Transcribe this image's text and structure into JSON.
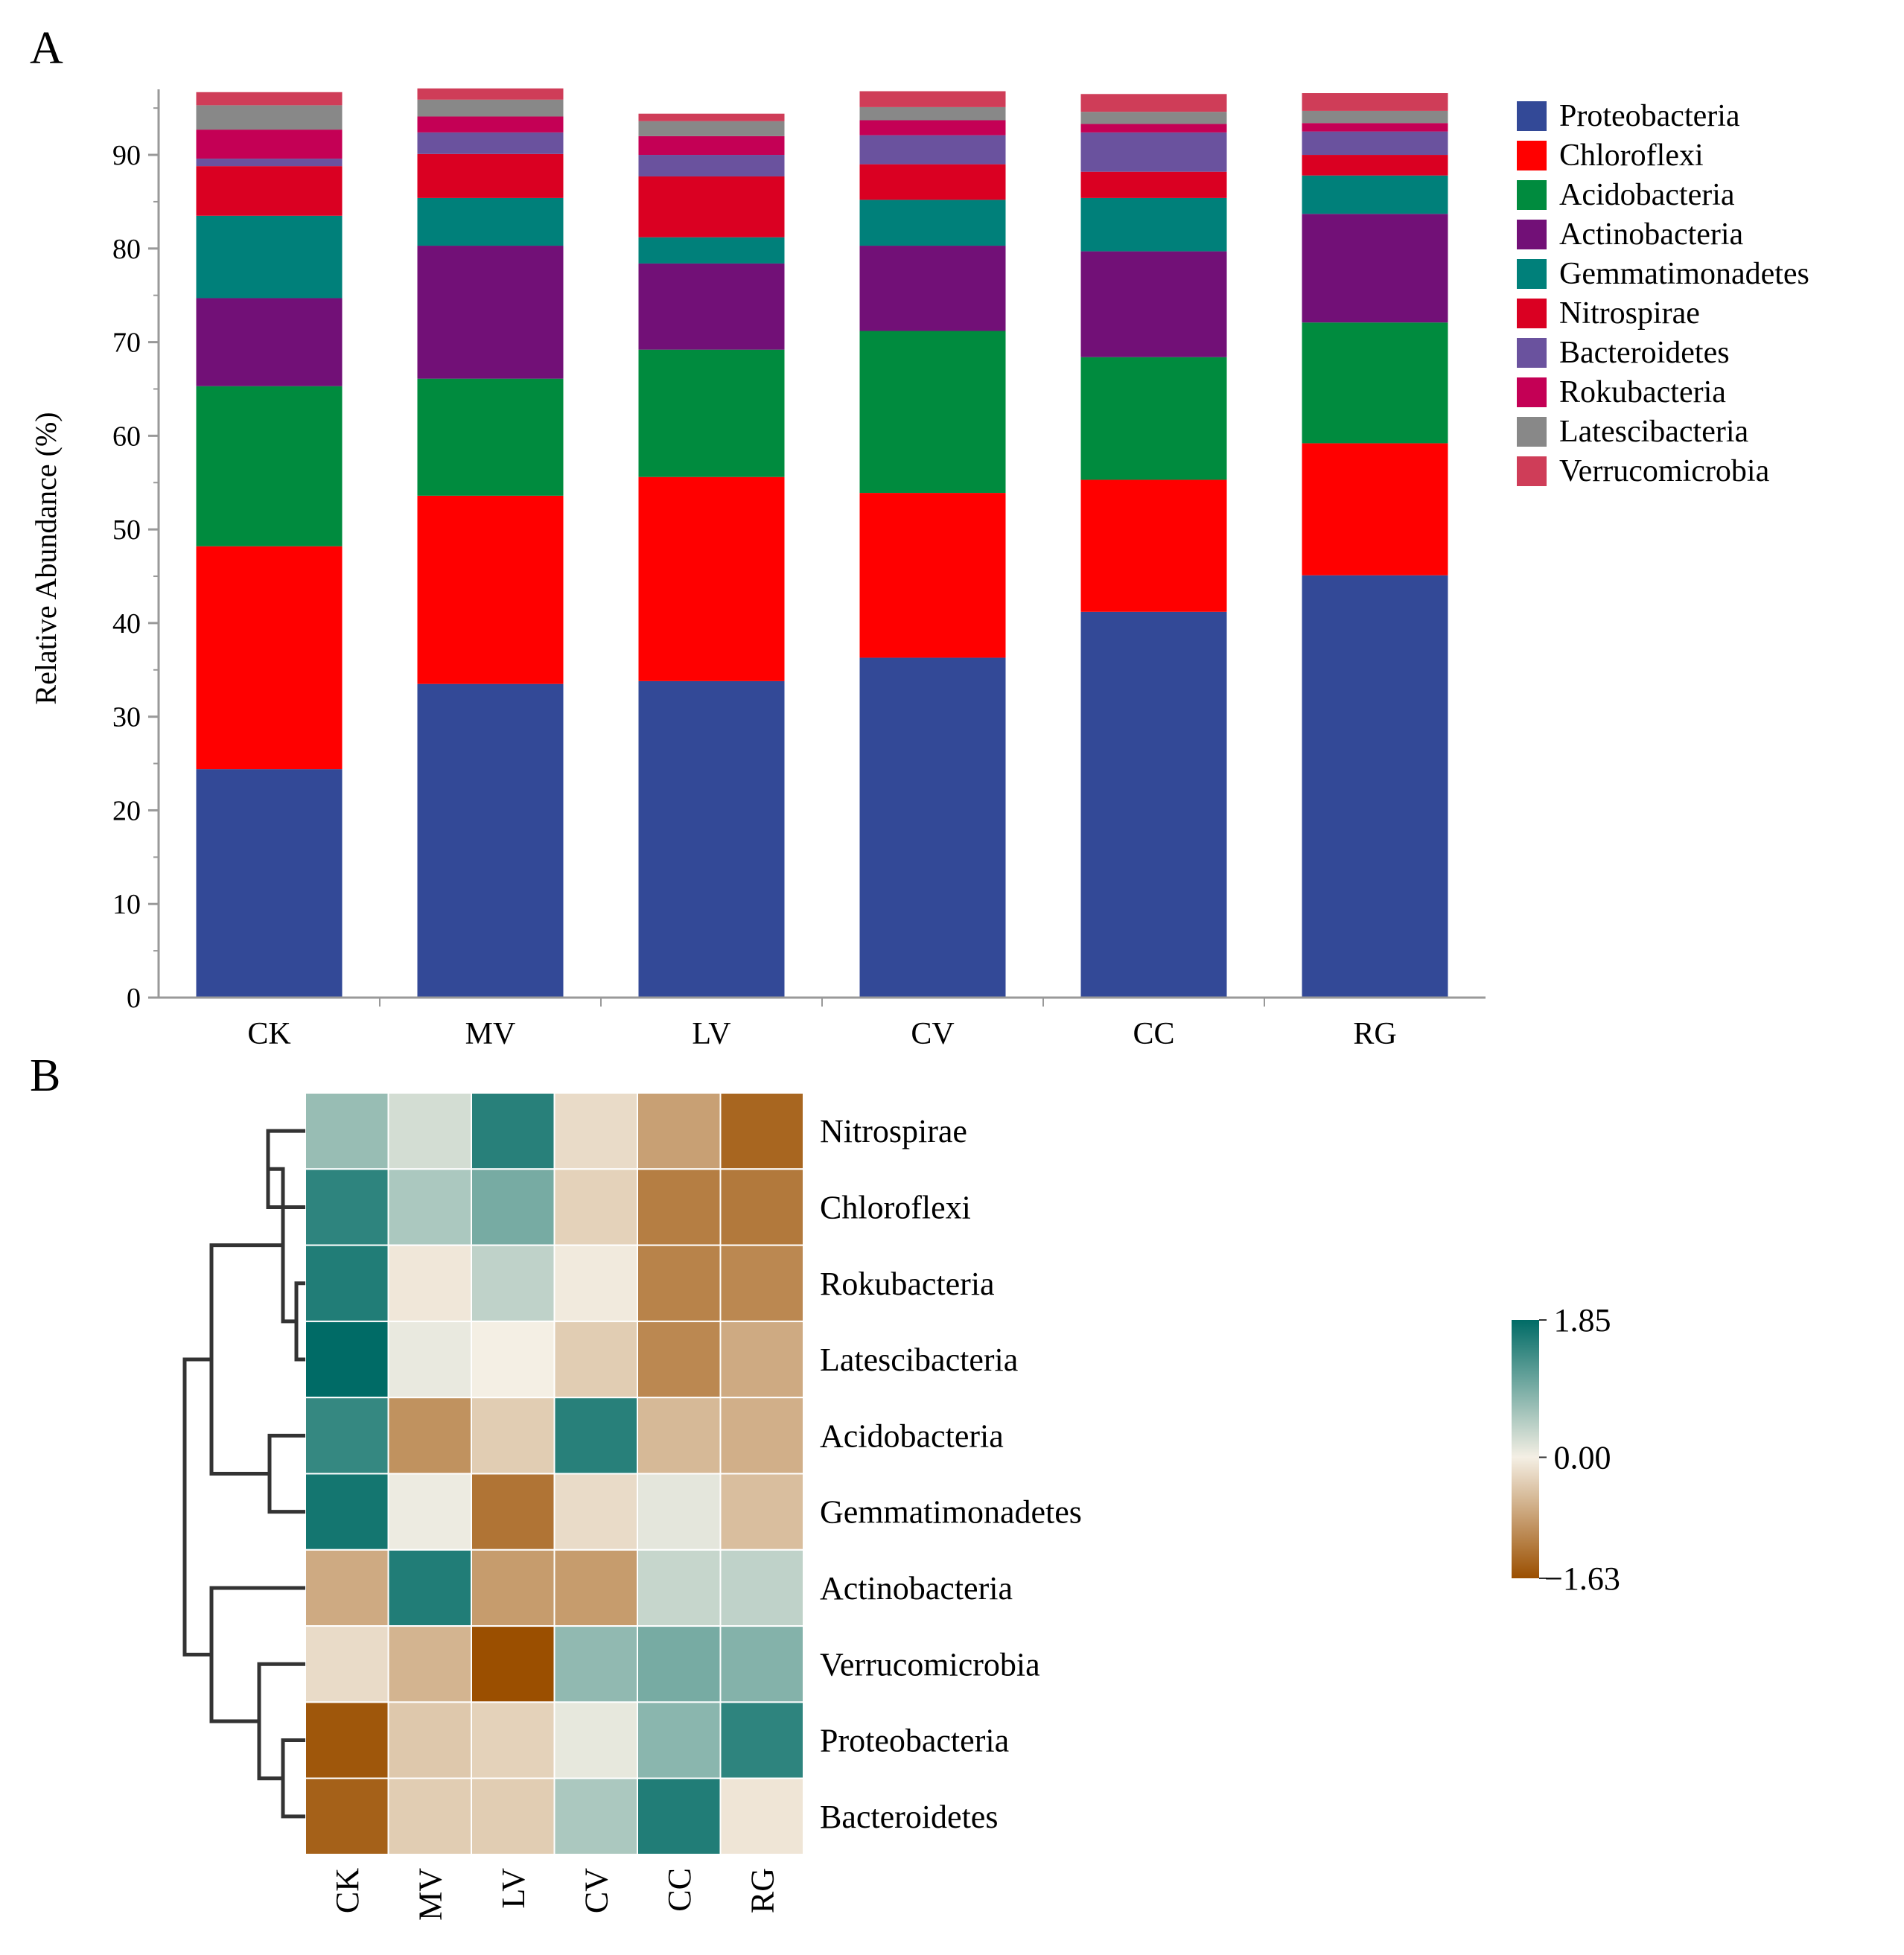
{
  "chart_data": [
    {
      "panel": "A",
      "type": "bar",
      "stacked": true,
      "ylabel": "Relative Abundance (%)",
      "xlabel": "",
      "ylim": [
        0,
        97
      ],
      "yticks": [
        0,
        10,
        20,
        30,
        40,
        50,
        60,
        70,
        80,
        90
      ],
      "legend_position": "right",
      "categories": [
        "CK",
        "MV",
        "LV",
        "CV",
        "CC",
        "RG"
      ],
      "series": [
        {
          "name": "Proteobacteria",
          "color": "#334997",
          "values": [
            24.4,
            33.5,
            33.8,
            36.3,
            41.2,
            45.1
          ]
        },
        {
          "name": "Chloroflexi",
          "color": "#FF0000",
          "values": [
            23.8,
            20.1,
            21.8,
            17.6,
            14.1,
            14.1
          ]
        },
        {
          "name": "Acidobacteria",
          "color": "#008B3E",
          "values": [
            17.1,
            12.5,
            13.6,
            17.3,
            13.1,
            12.9
          ]
        },
        {
          "name": "Actinobacteria",
          "color": "#721077",
          "values": [
            9.4,
            14.2,
            9.2,
            9.1,
            11.3,
            11.6
          ]
        },
        {
          "name": "Gemmatimonadetes",
          "color": "#00807A",
          "values": [
            8.8,
            5.1,
            2.8,
            4.9,
            5.7,
            4.1
          ]
        },
        {
          "name": "Nitrospirae",
          "color": "#DA0022",
          "values": [
            5.3,
            4.7,
            6.5,
            3.8,
            2.8,
            2.2
          ]
        },
        {
          "name": "Bacteroidetes",
          "color": "#6A529E",
          "values": [
            0.8,
            2.3,
            2.3,
            3.1,
            4.2,
            2.5
          ]
        },
        {
          "name": "Rokubacteria",
          "color": "#C40055",
          "values": [
            3.1,
            1.7,
            2.0,
            1.6,
            0.9,
            0.9
          ]
        },
        {
          "name": "Latescibacteria",
          "color": "#888888",
          "values": [
            2.6,
            1.8,
            1.6,
            1.4,
            1.3,
            1.3
          ]
        },
        {
          "name": "Verrucomicrobia",
          "color": "#CF3D58",
          "values": [
            1.4,
            1.2,
            0.8,
            1.7,
            1.9,
            1.9
          ]
        }
      ]
    },
    {
      "panel": "B",
      "type": "heatmap",
      "columns": [
        "CK",
        "MV",
        "LV",
        "CV",
        "CC",
        "RG"
      ],
      "rows": [
        "Nitrospirae",
        "Chloroflexi",
        "Rokubacteria",
        "Latescibacteria",
        "Acidobacteria",
        "Gemmatimonadetes",
        "Actinobacteria",
        "Verrucomicrobia",
        "Proteobacteria",
        "Bacteroidetes"
      ],
      "values": [
        [
          0.7,
          0.25,
          1.55,
          -0.2,
          -0.8,
          -1.4
        ],
        [
          1.5,
          0.55,
          0.95,
          -0.3,
          -1.15,
          -1.2
        ],
        [
          1.6,
          -0.08,
          0.4,
          -0.05,
          -1.1,
          -1.05
        ],
        [
          1.85,
          0.08,
          0.0,
          -0.35,
          -1.05,
          -0.7
        ],
        [
          1.45,
          -0.95,
          -0.35,
          1.55,
          -0.55,
          -0.65
        ],
        [
          1.7,
          0.05,
          -1.25,
          -0.2,
          0.12,
          -0.5
        ],
        [
          -0.7,
          1.6,
          -0.85,
          -0.85,
          0.35,
          0.4
        ],
        [
          -0.2,
          -0.6,
          -1.63,
          0.75,
          0.95,
          0.85
        ],
        [
          -1.55,
          -0.4,
          -0.3,
          0.1,
          0.8,
          1.5
        ],
        [
          -1.45,
          -0.35,
          -0.35,
          0.55,
          1.6,
          -0.1
        ]
      ],
      "colorbar": {
        "max": 1.85,
        "mid": 0.0,
        "min": -1.63,
        "max_label": "1.85",
        "mid_label": "0.00",
        "min_label": "−1.63",
        "colors": [
          "#9B4F00",
          "#F4EFE4",
          "#006B66"
        ]
      },
      "dendrogram": [
        {
          "left": 0,
          "right": 1,
          "height": 0.25
        },
        {
          "left": 2,
          "right": 3,
          "height": 0.06
        },
        {
          "left": 10,
          "right": 11,
          "height": 0.15
        },
        {
          "left": 4,
          "right": 5,
          "height": 0.24
        },
        {
          "left": 12,
          "right": 13,
          "height": 0.63
        },
        {
          "left": 8,
          "right": 9,
          "height": 0.15
        },
        {
          "left": 7,
          "right": 15,
          "height": 0.31
        },
        {
          "left": 6,
          "right": 16,
          "height": 0.63
        },
        {
          "left": 14,
          "right": 17,
          "height": 0.81
        }
      ]
    }
  ],
  "labels": {
    "panel_a": "A",
    "panel_b": "B"
  }
}
